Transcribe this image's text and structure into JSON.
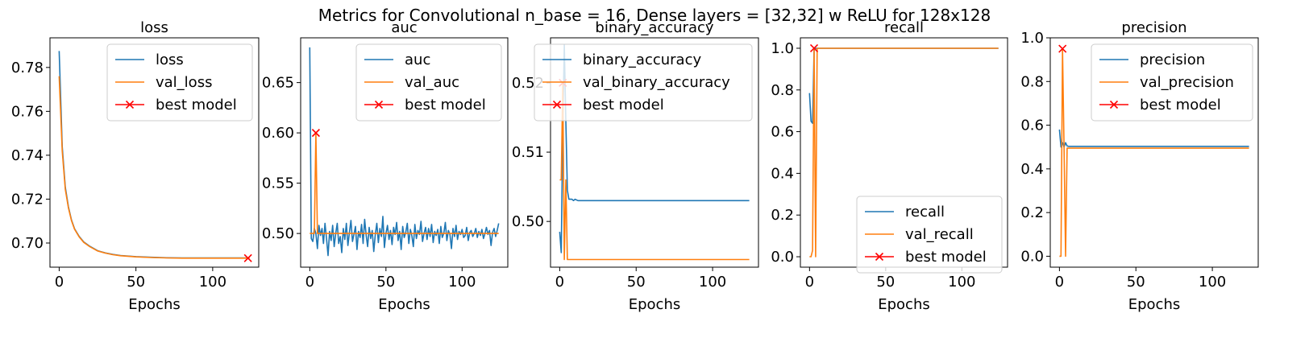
{
  "suptitle": "Metrics for Convolutional n_base = 16, Dense layers = [32,32] w ReLU for 128x128",
  "colors": {
    "train": "#1f77b4",
    "val": "#ff7f0e",
    "best": "#ff0000"
  },
  "chart_data": [
    {
      "type": "line",
      "title": "loss",
      "xlabel": "Epochs",
      "xlim": [
        -6,
        130
      ],
      "ylim": [
        0.689,
        0.7935
      ],
      "xticks": [
        0,
        50,
        100
      ],
      "yticks": [
        0.7,
        0.72,
        0.74,
        0.76,
        0.78
      ],
      "ytick_labels": [
        "0.70",
        "0.72",
        "0.74",
        "0.76",
        "0.78"
      ],
      "legend_position": "upper right",
      "legend": [
        "loss",
        "val_loss",
        "best model"
      ],
      "series": [
        {
          "name": "loss",
          "role": "train",
          "x": [
            0,
            2,
            4,
            6,
            8,
            10,
            13,
            16,
            20,
            25,
            30,
            35,
            40,
            50,
            60,
            70,
            80,
            90,
            100,
            110,
            124
          ],
          "y": [
            0.7875,
            0.744,
            0.7255,
            0.7165,
            0.7105,
            0.7065,
            0.703,
            0.7005,
            0.6985,
            0.6965,
            0.6955,
            0.6948,
            0.6943,
            0.6938,
            0.6935,
            0.6933,
            0.6932,
            0.6932,
            0.6932,
            0.6932,
            0.6932
          ]
        },
        {
          "name": "val_loss",
          "role": "val",
          "x": [
            0,
            2,
            4,
            6,
            8,
            10,
            13,
            16,
            20,
            25,
            30,
            35,
            40,
            50,
            60,
            70,
            80,
            90,
            100,
            110,
            124
          ],
          "y": [
            0.776,
            0.742,
            0.7245,
            0.716,
            0.7102,
            0.7063,
            0.7028,
            0.7003,
            0.6983,
            0.6964,
            0.6954,
            0.6947,
            0.6942,
            0.6937,
            0.6934,
            0.6932,
            0.6931,
            0.6931,
            0.6931,
            0.6931,
            0.6931
          ]
        }
      ],
      "best_model": {
        "name": "best model",
        "x": 123,
        "y": 0.6931
      }
    },
    {
      "type": "line",
      "title": "auc",
      "xlabel": "Epochs",
      "xlim": [
        -6,
        130
      ],
      "ylim": [
        0.4665,
        0.6945
      ],
      "xticks": [
        0,
        50,
        100
      ],
      "yticks": [
        0.5,
        0.55,
        0.6,
        0.65
      ],
      "ytick_labels": [
        "0.50",
        "0.55",
        "0.60",
        "0.65"
      ],
      "legend_position": "upper right",
      "legend": [
        "auc",
        "val_auc",
        "best model"
      ],
      "series": [
        {
          "name": "auc",
          "role": "train",
          "x": [
            0,
            1,
            2,
            3,
            4,
            5,
            6,
            7,
            8,
            9,
            10,
            11,
            12,
            13,
            14,
            15,
            16,
            17,
            18,
            19,
            20,
            21,
            22,
            23,
            24,
            25,
            26,
            27,
            28,
            29,
            30,
            31,
            32,
            33,
            34,
            35,
            36,
            37,
            38,
            39,
            40,
            41,
            42,
            43,
            44,
            45,
            46,
            47,
            48,
            49,
            50,
            51,
            52,
            53,
            54,
            55,
            56,
            57,
            58,
            59,
            60,
            61,
            62,
            63,
            64,
            65,
            66,
            67,
            68,
            69,
            70,
            71,
            72,
            73,
            74,
            75,
            76,
            77,
            78,
            79,
            80,
            81,
            82,
            83,
            84,
            85,
            86,
            87,
            88,
            89,
            90,
            91,
            92,
            93,
            94,
            95,
            96,
            97,
            98,
            99,
            100,
            101,
            102,
            103,
            104,
            105,
            106,
            107,
            108,
            109,
            110,
            111,
            112,
            113,
            114,
            115,
            116,
            117,
            118,
            119,
            120,
            121,
            122,
            123,
            124
          ],
          "y": [
            0.685,
            0.495,
            0.492,
            0.505,
            0.5,
            0.485,
            0.508,
            0.498,
            0.505,
            0.49,
            0.51,
            0.495,
            0.478,
            0.502,
            0.493,
            0.508,
            0.487,
            0.5,
            0.51,
            0.49,
            0.497,
            0.481,
            0.505,
            0.494,
            0.51,
            0.488,
            0.501,
            0.513,
            0.492,
            0.499,
            0.507,
            0.484,
            0.502,
            0.496,
            0.509,
            0.49,
            0.514,
            0.498,
            0.487,
            0.506,
            0.495,
            0.503,
            0.482,
            0.499,
            0.51,
            0.491,
            0.505,
            0.497,
            0.517,
            0.486,
            0.5,
            0.508,
            0.494,
            0.503,
            0.489,
            0.506,
            0.499,
            0.511,
            0.493,
            0.502,
            0.484,
            0.507,
            0.496,
            0.501,
            0.51,
            0.49,
            0.504,
            0.498,
            0.487,
            0.509,
            0.495,
            0.503,
            0.499,
            0.512,
            0.492,
            0.5,
            0.506,
            0.494,
            0.505,
            0.497,
            0.509,
            0.491,
            0.502,
            0.498,
            0.504,
            0.49,
            0.507,
            0.496,
            0.5,
            0.511,
            0.493,
            0.503,
            0.499,
            0.485,
            0.505,
            0.497,
            0.508,
            0.494,
            0.502,
            0.499,
            0.504,
            0.496,
            0.498,
            0.506,
            0.493,
            0.501,
            0.503,
            0.497,
            0.5,
            0.505,
            0.496,
            0.502,
            0.498,
            0.504,
            0.495,
            0.5,
            0.506,
            0.499,
            0.503,
            0.488,
            0.501,
            0.505,
            0.497,
            0.503,
            0.51
          ]
        },
        {
          "name": "val_auc",
          "role": "val",
          "x": [
            0,
            1,
            2,
            3,
            4,
            5,
            6,
            7,
            8,
            9,
            10,
            11,
            12,
            13,
            14,
            15,
            16,
            17,
            18,
            19,
            20,
            21,
            22,
            23,
            24,
            25,
            26,
            27,
            28,
            29,
            30,
            31,
            32,
            33,
            34,
            35,
            36,
            37,
            38,
            39,
            40,
            41,
            42,
            43,
            44,
            45,
            46,
            47,
            48,
            49,
            50,
            51,
            52,
            53,
            54,
            55,
            56,
            57,
            58,
            59,
            60,
            61,
            62,
            63,
            64,
            65,
            66,
            67,
            68,
            69,
            70,
            71,
            72,
            73,
            74,
            75,
            76,
            77,
            78,
            79,
            80,
            81,
            82,
            83,
            84,
            85,
            86,
            87,
            88,
            89,
            90,
            91,
            92,
            93,
            94,
            95,
            96,
            97,
            98,
            99,
            100,
            101,
            102,
            103,
            104,
            105,
            106,
            107,
            108,
            109,
            110,
            111,
            112,
            113,
            114,
            115,
            116,
            117,
            118,
            119,
            120,
            121,
            122,
            123,
            124
          ],
          "y": [
            0.5,
            0.5,
            0.5,
            0.5,
            0.6,
            0.5,
            0.5,
            0.5,
            0.5,
            0.5,
            0.5,
            0.5,
            0.5,
            0.5,
            0.5,
            0.5,
            0.5,
            0.5,
            0.5,
            0.5,
            0.5,
            0.5,
            0.5,
            0.5,
            0.5,
            0.5,
            0.5,
            0.5,
            0.5,
            0.5,
            0.5,
            0.5,
            0.5,
            0.5,
            0.5,
            0.5,
            0.5,
            0.5,
            0.5,
            0.5,
            0.5,
            0.5,
            0.5,
            0.5,
            0.5,
            0.5,
            0.5,
            0.5,
            0.5,
            0.5,
            0.5,
            0.5,
            0.5,
            0.5,
            0.5,
            0.5,
            0.5,
            0.5,
            0.5,
            0.5,
            0.5,
            0.5,
            0.5,
            0.5,
            0.5,
            0.5,
            0.5,
            0.5,
            0.5,
            0.5,
            0.5,
            0.5,
            0.5,
            0.5,
            0.5,
            0.5,
            0.5,
            0.5,
            0.5,
            0.5,
            0.5,
            0.5,
            0.5,
            0.5,
            0.5,
            0.5,
            0.5,
            0.5,
            0.5,
            0.5,
            0.5,
            0.5,
            0.5,
            0.5,
            0.5,
            0.5,
            0.5,
            0.5,
            0.5,
            0.5,
            0.5,
            0.5,
            0.5,
            0.5,
            0.5,
            0.5,
            0.5,
            0.5,
            0.5,
            0.5,
            0.5,
            0.5,
            0.5,
            0.5,
            0.5,
            0.5,
            0.5,
            0.5,
            0.5,
            0.5,
            0.5,
            0.5,
            0.5,
            0.5,
            0.5
          ]
        }
      ],
      "best_model": {
        "name": "best model",
        "x": 4,
        "y": 0.6
      }
    },
    {
      "type": "line",
      "title": "binary_accuracy",
      "xlabel": "Epochs",
      "xlim": [
        -6,
        130
      ],
      "ylim": [
        0.4934,
        0.5265
      ],
      "xticks": [
        0,
        50,
        100
      ],
      "yticks": [
        0.5,
        0.51,
        0.52
      ],
      "ytick_labels": [
        "0.50",
        "0.51",
        "0.52"
      ],
      "legend_position": "upper left",
      "legend": [
        "binary_accuracy",
        "val_binary_accuracy",
        "best model"
      ],
      "series": [
        {
          "name": "binary_accuracy",
          "role": "train",
          "x": [
            0,
            1,
            2,
            3,
            4,
            5,
            6,
            7,
            8,
            9,
            10,
            12,
            15,
            20,
            30,
            50,
            80,
            100,
            124
          ],
          "y": [
            0.4985,
            0.4955,
            0.5135,
            0.5255,
            0.5145,
            0.5045,
            0.5032,
            0.5032,
            0.5032,
            0.503,
            0.5032,
            0.503,
            0.503,
            0.503,
            0.503,
            0.503,
            0.503,
            0.503,
            0.503
          ]
        },
        {
          "name": "val_binary_accuracy",
          "role": "val",
          "x": [
            0,
            1,
            2,
            3,
            4,
            5,
            6,
            7,
            8,
            10,
            20,
            50,
            80,
            100,
            124
          ],
          "y": [
            0.506,
            0.506,
            0.52,
            0.4945,
            0.506,
            0.4945,
            0.4945,
            0.4945,
            0.4945,
            0.4945,
            0.4945,
            0.4945,
            0.4945,
            0.4945,
            0.4945
          ]
        }
      ],
      "best_model": {
        "name": "best model",
        "x": 2,
        "y": 0.52
      }
    },
    {
      "type": "line",
      "title": "recall",
      "xlabel": "Epochs",
      "xlim": [
        -6,
        130
      ],
      "ylim": [
        -0.05,
        1.05
      ],
      "xticks": [
        0,
        50,
        100
      ],
      "yticks": [
        0.0,
        0.2,
        0.4,
        0.6,
        0.8,
        1.0
      ],
      "ytick_labels": [
        "0.0",
        "0.2",
        "0.4",
        "0.6",
        "0.8",
        "1.0"
      ],
      "legend_position": "lower right",
      "legend": [
        "recall",
        "val_recall",
        "best model"
      ],
      "series": [
        {
          "name": "recall",
          "role": "train",
          "x": [
            0,
            1,
            2,
            3,
            4,
            5,
            6,
            8,
            10,
            20,
            50,
            80,
            100,
            124
          ],
          "y": [
            0.785,
            0.65,
            0.64,
            0.99,
            1.0,
            1.0,
            1.0,
            1.0,
            1.0,
            1.0,
            1.0,
            1.0,
            1.0,
            1.0
          ]
        },
        {
          "name": "val_recall",
          "role": "val",
          "x": [
            0,
            1,
            2,
            3,
            4,
            5,
            6,
            8,
            10,
            20,
            50,
            80,
            100,
            124
          ],
          "y": [
            0.0,
            0.0,
            0.03,
            1.0,
            0.0,
            1.0,
            1.0,
            1.0,
            1.0,
            1.0,
            1.0,
            1.0,
            1.0,
            1.0
          ]
        }
      ],
      "best_model": {
        "name": "best model",
        "x": 3,
        "y": 1.0
      }
    },
    {
      "type": "line",
      "title": "precision",
      "xlabel": "Epochs",
      "xlim": [
        -6,
        130
      ],
      "ylim": [
        -0.05,
        1.0
      ],
      "xticks": [
        0,
        50,
        100
      ],
      "yticks": [
        0.0,
        0.2,
        0.4,
        0.6,
        0.8,
        1.0
      ],
      "ytick_labels": [
        "0.0",
        "0.2",
        "0.4",
        "0.6",
        "0.8",
        "1.0"
      ],
      "legend_position": "upper right",
      "legend": [
        "precision",
        "val_precision",
        "best model"
      ],
      "series": [
        {
          "name": "precision",
          "role": "train",
          "x": [
            0,
            1,
            2,
            3,
            4,
            5,
            6,
            8,
            10,
            20,
            50,
            80,
            100,
            124
          ],
          "y": [
            0.58,
            0.5,
            0.52,
            0.5,
            0.52,
            0.505,
            0.503,
            0.503,
            0.503,
            0.503,
            0.503,
            0.503,
            0.503,
            0.503
          ]
        },
        {
          "name": "val_precision",
          "role": "val",
          "x": [
            0,
            1,
            2,
            3,
            4,
            5,
            6,
            8,
            10,
            20,
            50,
            80,
            100,
            124
          ],
          "y": [
            0.0,
            0.0,
            0.95,
            0.5,
            0.0,
            0.495,
            0.495,
            0.495,
            0.495,
            0.495,
            0.495,
            0.495,
            0.495,
            0.495
          ]
        }
      ],
      "best_model": {
        "name": "best model",
        "x": 2,
        "y": 0.95
      }
    }
  ]
}
